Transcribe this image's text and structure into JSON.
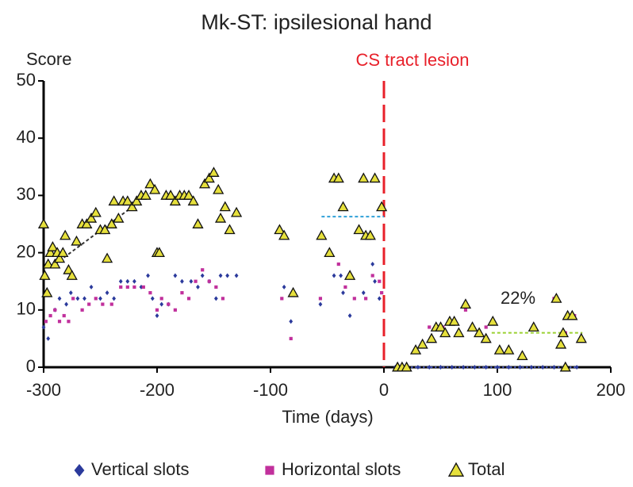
{
  "chart_data": {
    "type": "scatter",
    "title": "Mk-ST: ipsilesional hand",
    "y_label": "Score",
    "x_label": "Time (days)",
    "lesion": {
      "label": "CS tract lesion",
      "x": 0,
      "color": "#e8202a"
    },
    "annotation": "22%",
    "xlim": [
      -300,
      200
    ],
    "ylim": [
      0,
      50
    ],
    "xticks": [
      -300,
      -200,
      -100,
      0,
      100,
      200
    ],
    "yticks": [
      0,
      10,
      20,
      30,
      40,
      50
    ],
    "series": [
      {
        "name": "Vertical slots",
        "marker": "diamond",
        "color": "#2b3a9c",
        "x": [
          -300,
          -296,
          -290,
          -286,
          -280,
          -276,
          -270,
          -264,
          -258,
          -250,
          -244,
          -238,
          -232,
          -226,
          -220,
          -214,
          -208,
          -204,
          -200,
          -196,
          -190,
          -184,
          -178,
          -170,
          -164,
          -160,
          -154,
          -148,
          -144,
          -138,
          -130,
          -88,
          -82,
          -56,
          -44,
          -38,
          -36,
          -30,
          -18,
          -10,
          -8,
          -4,
          10,
          20,
          30,
          40,
          50,
          60,
          70,
          80,
          90,
          100,
          110,
          120,
          130,
          140,
          150,
          160,
          170
        ],
        "values": [
          7,
          5,
          10,
          12,
          11,
          13,
          12,
          12,
          14,
          12,
          13,
          12,
          15,
          15,
          15,
          14,
          16,
          12,
          9,
          11,
          11,
          16,
          15,
          15,
          14,
          16,
          15,
          12,
          16,
          16,
          16,
          14,
          8,
          11,
          16,
          16,
          13,
          9,
          13,
          18,
          15,
          12,
          0,
          0,
          0,
          0,
          0,
          0,
          0,
          0,
          0,
          0,
          0,
          0,
          0,
          0,
          0,
          0,
          0
        ]
      },
      {
        "name": "Horizontal slots",
        "marker": "square",
        "color": "#c1309c",
        "x": [
          -298,
          -294,
          -290,
          -286,
          -282,
          -278,
          -274,
          -266,
          -260,
          -254,
          -248,
          -240,
          -232,
          -226,
          -220,
          -212,
          -206,
          -200,
          -196,
          -190,
          -184,
          -178,
          -172,
          -166,
          -160,
          -154,
          -148,
          -142,
          -90,
          -82,
          -56,
          -40,
          -34,
          -26,
          -16,
          -10,
          -4,
          -2,
          28,
          40,
          52,
          62,
          72,
          90,
          150,
          160,
          168
        ],
        "values": [
          8,
          9,
          10,
          8,
          9,
          8,
          12,
          10,
          11,
          12,
          11,
          11,
          14,
          14,
          14,
          14,
          13,
          10,
          12,
          11,
          10,
          13,
          12,
          15,
          17,
          15,
          14,
          12,
          12,
          5,
          12,
          18,
          14,
          12,
          12,
          16,
          15,
          13,
          3,
          7,
          7,
          8,
          10,
          7,
          12,
          6,
          9
        ]
      },
      {
        "name": "Total",
        "marker": "triangle",
        "color": "#e6e03c",
        "x": [
          -300,
          -299,
          -297,
          -296,
          -294,
          -292,
          -290,
          -288,
          -286,
          -283,
          -281,
          -278,
          -275,
          -271,
          -266,
          -262,
          -258,
          -254,
          -250,
          -246,
          -244,
          -240,
          -238,
          -234,
          -230,
          -226,
          -222,
          -218,
          -214,
          -210,
          -206,
          -202,
          -200,
          -198,
          -192,
          -188,
          -184,
          -180,
          -176,
          -172,
          -168,
          -164,
          -158,
          -154,
          -150,
          -146,
          -144,
          -140,
          -136,
          -130,
          -92,
          -88,
          -80,
          -55,
          -48,
          -44,
          -40,
          -36,
          -30,
          -22,
          -18,
          -16,
          -12,
          -8,
          -2,
          12,
          16,
          20,
          28,
          34,
          42,
          46,
          50,
          54,
          58,
          62,
          66,
          72,
          78,
          84,
          90,
          96,
          102,
          110,
          122,
          132,
          152,
          156,
          158,
          160,
          162,
          166,
          174
        ],
        "values": [
          25,
          16,
          13,
          18,
          20,
          21,
          18,
          20,
          19,
          20,
          23,
          17,
          16,
          22,
          25,
          25,
          26,
          27,
          24,
          24,
          19,
          25,
          29,
          26,
          29,
          29,
          28,
          29,
          30,
          30,
          32,
          31,
          20,
          20,
          30,
          30,
          29,
          30,
          30,
          30,
          29,
          25,
          32,
          33,
          34,
          31,
          26,
          28,
          24,
          27,
          24,
          23,
          13,
          23,
          20,
          33,
          33,
          28,
          16,
          24,
          33,
          23,
          23,
          33,
          28,
          0,
          0,
          0,
          3,
          4,
          5,
          7,
          7,
          6,
          8,
          8,
          6,
          11,
          7,
          6,
          5,
          8,
          3,
          3,
          2,
          7,
          12,
          4,
          6,
          0,
          9,
          9,
          5
        ]
      }
    ],
    "lines": [
      {
        "x": [
          -290,
          -215
        ],
        "y": [
          18,
          29
        ],
        "color": "#333333",
        "dash": "4 3"
      },
      {
        "x": [
          -55,
          0
        ],
        "y": [
          26.3,
          26.3
        ],
        "color": "#2ea0d8",
        "dash": "4 3"
      },
      {
        "x": [
          95,
          175
        ],
        "y": [
          6,
          6
        ],
        "color": "#9ad030",
        "dash": "4 3"
      },
      {
        "x": [
          10,
          170
        ],
        "y": [
          0,
          0
        ],
        "color": "#4a5ac8",
        "dash": "2 3"
      }
    ]
  }
}
